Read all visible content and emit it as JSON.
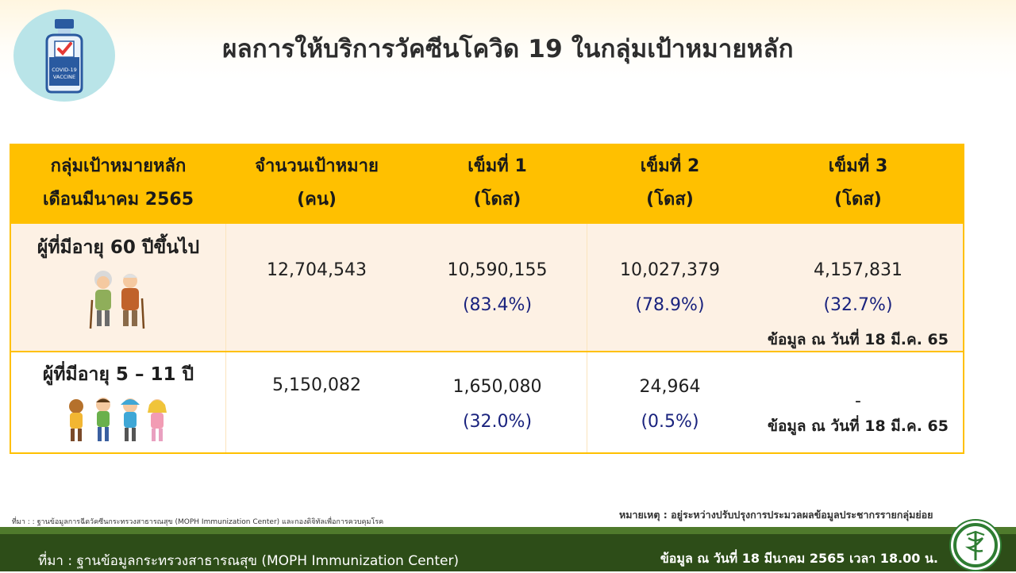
{
  "page": {
    "title": "ผลการให้บริการวัคซีนโควิด 19 ในกลุ่มเป้าหมายหลัก"
  },
  "badge": {
    "label_1": "COVID-19",
    "label_2": "VACCINE"
  },
  "table": {
    "headers": [
      {
        "line1": "กลุ่มเป้าหมายหลัก",
        "line2": "เดือนมีนาคม 2565"
      },
      {
        "line1": "จำนวนเป้าหมาย",
        "line2": "(คน)"
      },
      {
        "line1": "เข็มที่ 1",
        "line2": "(โดส)"
      },
      {
        "line1": "เข็มที่ 2",
        "line2": "(โดส)"
      },
      {
        "line1": "เข็มที่ 3",
        "line2": "(โดส)"
      }
    ],
    "rows": [
      {
        "group": "ผู้ที่มีอายุ 60 ปีขึ้นไป",
        "image": "elderly-couple-icon",
        "target": "12,704,543",
        "dose1": "10,590,155",
        "dose1_pct": "(83.4%)",
        "dose2": "10,027,379",
        "dose2_pct": "(78.9%)",
        "dose3": "4,157,831",
        "dose3_pct": "(32.7%)",
        "note": "ข้อมูล ณ วันที่ 18 มี.ค. 65"
      },
      {
        "group": "ผู้ที่มีอายุ 5 – 11 ปี",
        "image": "children-group-icon",
        "target": "5,150,082",
        "dose1": "1,650,080",
        "dose1_pct": "(32.0%)",
        "dose2": "24,964",
        "dose2_pct": "(0.5%)",
        "dose3": "-",
        "note": "ข้อมูล ณ วันที่ 18 มี.ค. 65"
      }
    ]
  },
  "footnotes": {
    "source_small": "ที่มา : : ฐานข้อมูลการฉีดวัคซีนกระทรวงสาธารณสุข (MOPH  Immunization Center) และกองดิจิทัลเพื่อการควบคุมโรค",
    "remark": "หมายเหตุ : อยู่ระหว่างปรับปรุงการประมวลผลข้อมูลประชากรรายกลุ่มย่อย"
  },
  "footer": {
    "source": "ที่มา : ฐานข้อมูลกระทรวงสาธารณสุข (MOPH  Immunization Center)",
    "date": "ข้อมูล ณ วันที่ 18 มีนาคม 2565 เวลา 18.00 น."
  },
  "colors": {
    "header_bg": "#ffc000",
    "row1_bg": "#fdf1e4",
    "percent_text": "#1a237e",
    "footer_bg": "#2d4d18"
  }
}
